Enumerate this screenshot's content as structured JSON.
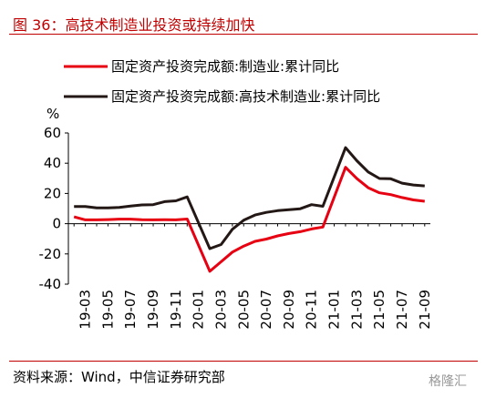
{
  "figure": {
    "title": "图 36：高技术制造业投资或持续加快",
    "source": "资料来源：Wind，中信证券研究部",
    "watermark": "格隆汇"
  },
  "chart_data": {
    "type": "line",
    "ylabel": "%",
    "ylim": [
      -40,
      60
    ],
    "yticks": [
      -40,
      -20,
      0,
      20,
      40,
      60
    ],
    "x": [
      "19-02",
      "19-03",
      "19-04",
      "19-05",
      "19-06",
      "19-07",
      "19-08",
      "19-09",
      "19-10",
      "19-11",
      "19-12",
      "20-01",
      "20-02",
      "20-03",
      "20-04",
      "20-05",
      "20-06",
      "20-07",
      "20-08",
      "20-09",
      "20-10",
      "20-11",
      "20-12",
      "21-01",
      "21-02",
      "21-03",
      "21-04",
      "21-05",
      "21-06",
      "21-07",
      "21-08",
      "21-09"
    ],
    "xticks": [
      "19-03",
      "19-05",
      "19-07",
      "19-09",
      "19-11",
      "20-01",
      "20-03",
      "20-05",
      "20-07",
      "20-09",
      "20-11",
      "21-01",
      "21-03",
      "21-05",
      "21-07",
      "21-09"
    ],
    "grid": false,
    "legend_position": "top",
    "series": [
      {
        "name": "固定资产投资完成额:制造业:累计同比",
        "color": "#e60012",
        "values": [
          4.5,
          2.5,
          2.5,
          2.7,
          3.0,
          3.0,
          2.6,
          2.5,
          2.6,
          2.5,
          3.1,
          null,
          -31.5,
          -25.2,
          -18.8,
          -14.8,
          -11.7,
          -10.2,
          -8.1,
          -6.5,
          -5.3,
          -3.5,
          -2.2,
          null,
          37.3,
          29.8,
          23.8,
          20.4,
          19.2,
          17.3,
          15.7,
          14.8
        ]
      },
      {
        "name": "固定资产投资完成额:高技术制造业:累计同比",
        "color": "#231815",
        "values": [
          11.4,
          11.4,
          10.4,
          10.4,
          10.8,
          11.6,
          12.4,
          12.6,
          14.6,
          15.1,
          17.7,
          null,
          -16.5,
          -13.8,
          -3.7,
          2.3,
          5.7,
          7.5,
          8.6,
          9.3,
          9.9,
          12.6,
          11.5,
          null,
          50.3,
          41.6,
          34.2,
          29.9,
          29.7,
          26.8,
          25.6,
          25.0
        ]
      }
    ]
  }
}
